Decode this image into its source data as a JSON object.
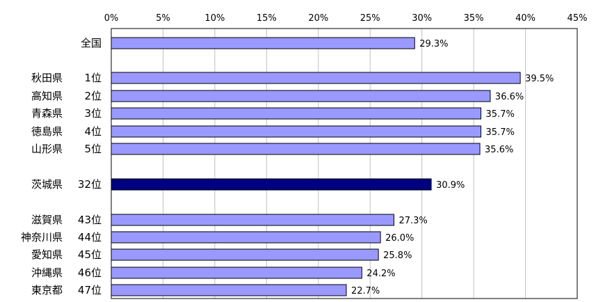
{
  "chart_data": {
    "type": "bar",
    "orientation": "horizontal",
    "title": "",
    "xlabel": "",
    "ylabel": "",
    "xlim": [
      0,
      45
    ],
    "ticks": [
      "0%",
      "5%",
      "10%",
      "15%",
      "20%",
      "25%",
      "30%",
      "35%",
      "40%",
      "45%"
    ],
    "grid": true,
    "colors": {
      "default": "#9999ff",
      "highlight": "#000080",
      "edge": "#000000"
    },
    "categories": [
      {
        "name": "全国",
        "rank": "",
        "value": 29.3,
        "label": "29.3%",
        "highlight": false
      },
      {
        "name": "秋田県",
        "rank": "1位",
        "value": 39.5,
        "label": "39.5%",
        "highlight": false
      },
      {
        "name": "高知県",
        "rank": "2位",
        "value": 36.6,
        "label": "36.6%",
        "highlight": false
      },
      {
        "name": "青森県",
        "rank": "3位",
        "value": 35.7,
        "label": "35.7%",
        "highlight": false
      },
      {
        "name": "徳島県",
        "rank": "4位",
        "value": 35.7,
        "label": "35.7%",
        "highlight": false
      },
      {
        "name": "山形県",
        "rank": "5位",
        "value": 35.6,
        "label": "35.6%",
        "highlight": false
      },
      {
        "name": "茨城県",
        "rank": "32位",
        "value": 30.9,
        "label": "30.9%",
        "highlight": true
      },
      {
        "name": "滋賀県",
        "rank": "43位",
        "value": 27.3,
        "label": "27.3%",
        "highlight": false
      },
      {
        "name": "神奈川県",
        "rank": "44位",
        "value": 26.0,
        "label": "26.0%",
        "highlight": false
      },
      {
        "name": "愛知県",
        "rank": "45位",
        "value": 25.8,
        "label": "25.8%",
        "highlight": false
      },
      {
        "name": "沖縄県",
        "rank": "46位",
        "value": 24.2,
        "label": "24.2%",
        "highlight": false
      },
      {
        "name": "東京都",
        "rank": "47位",
        "value": 22.7,
        "label": "22.7%",
        "highlight": false
      }
    ]
  }
}
